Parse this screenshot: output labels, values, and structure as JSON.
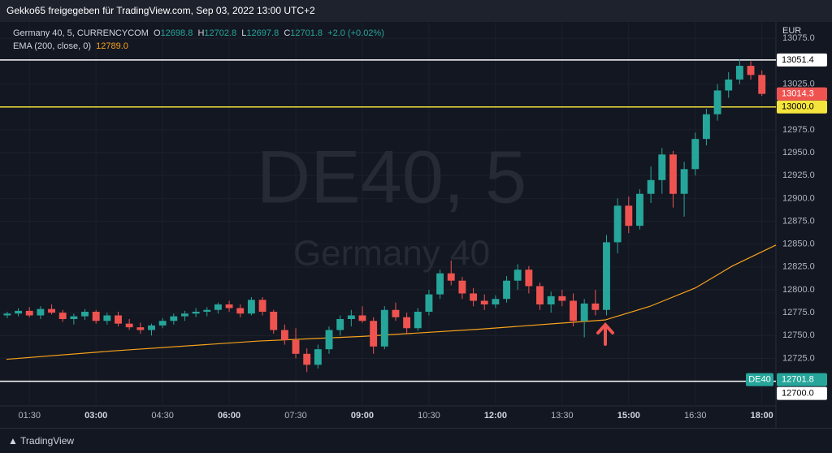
{
  "banner": "Gekko65 freigegeben für TradingView.com, Sep 03, 2022 13:00 UTC+2",
  "footer": "TradingView",
  "chart_data": {
    "type": "candlestick",
    "watermark": "DE40, 5",
    "watermark_sub": "Germany 40",
    "legend": {
      "symbol": "Germany 40, 5, CURRENCYCOM",
      "o_label": "O",
      "o": "12698.8",
      "h_label": "H",
      "h": "12702.8",
      "l_label": "L",
      "l": "12697.8",
      "c_label": "C",
      "c": "12701.8",
      "change": "+2.0 (+0.02%)",
      "ema_name": "EMA (200, close, 0)",
      "ema_value": "12789.0"
    },
    "currency": "EUR",
    "up_color": "#26a69a",
    "down_color": "#ef5350",
    "x": [
      60,
      75,
      90,
      105,
      120,
      135,
      150,
      165,
      180,
      195,
      210,
      225,
      240,
      255,
      270,
      285,
      300,
      315,
      330,
      345,
      360,
      375,
      390,
      405,
      420,
      435,
      450,
      465,
      480,
      495,
      510,
      525,
      540,
      555,
      570,
      585,
      600,
      615,
      630,
      645,
      660,
      675,
      690,
      705,
      720,
      735,
      750,
      765,
      780,
      795,
      810,
      825,
      840,
      855,
      870,
      885,
      900,
      915,
      930,
      945,
      960,
      975,
      990,
      1005,
      1020,
      1035,
      1050,
      1065,
      1080
    ],
    "open": [
      12772,
      12774,
      12777,
      12772,
      12779,
      12775,
      12768,
      12771,
      12776,
      12766,
      12772,
      12763,
      12759,
      12756,
      12761,
      12766,
      12771,
      12774,
      12776,
      12778,
      12784,
      12780,
      12774,
      12789,
      12776,
      12756,
      12745,
      12730,
      12718,
      12735,
      12756,
      12768,
      12772,
      12766,
      12738,
      12778,
      12770,
      12758,
      12776,
      12795,
      12818,
      12810,
      12796,
      12788,
      12784,
      12790,
      12810,
      12822,
      12804,
      12784,
      12793,
      12788,
      12766,
      12785,
      12778,
      12852,
      12892,
      12870,
      12905,
      12920,
      12948,
      12905,
      12932,
      12965,
      12992,
      13018,
      13030,
      13045,
      13035
    ],
    "high": [
      12776,
      12780,
      12781,
      12782,
      12784,
      12778,
      12774,
      12779,
      12778,
      12775,
      12776,
      12768,
      12764,
      12763,
      12769,
      12774,
      12777,
      12780,
      12781,
      12786,
      12788,
      12784,
      12792,
      12792,
      12778,
      12762,
      12758,
      12736,
      12740,
      12760,
      12772,
      12778,
      12782,
      12770,
      12782,
      12786,
      12775,
      12780,
      12800,
      12822,
      12832,
      12814,
      12802,
      12795,
      12794,
      12815,
      12828,
      12826,
      12808,
      12798,
      12800,
      12796,
      12790,
      12800,
      12860,
      12900,
      12902,
      12910,
      12935,
      12955,
      12952,
      12940,
      12972,
      12998,
      13025,
      13038,
      13052,
      13050,
      13040
    ],
    "low": [
      12769,
      12771,
      12770,
      12768,
      12773,
      12765,
      12762,
      12767,
      12763,
      12762,
      12760,
      12756,
      12752,
      12750,
      12758,
      12762,
      12766,
      12770,
      12771,
      12774,
      12776,
      12770,
      12772,
      12772,
      12752,
      12740,
      12725,
      12710,
      12714,
      12730,
      12750,
      12760,
      12764,
      12730,
      12735,
      12766,
      12752,
      12755,
      12772,
      12790,
      12805,
      12790,
      12782,
      12778,
      12780,
      12786,
      12800,
      12796,
      12778,
      12775,
      12782,
      12760,
      12748,
      12772,
      12772,
      12840,
      12862,
      12866,
      12895,
      12905,
      12890,
      12880,
      12925,
      12958,
      12985,
      13010,
      13025,
      13030,
      13012
    ],
    "close": [
      12774,
      12777,
      12772,
      12779,
      12775,
      12768,
      12771,
      12776,
      12766,
      12772,
      12763,
      12759,
      12756,
      12761,
      12766,
      12771,
      12774,
      12776,
      12778,
      12784,
      12780,
      12774,
      12789,
      12776,
      12756,
      12745,
      12730,
      12718,
      12735,
      12756,
      12768,
      12772,
      12766,
      12738,
      12778,
      12770,
      12758,
      12776,
      12795,
      12818,
      12810,
      12796,
      12788,
      12784,
      12790,
      12810,
      12822,
      12804,
      12784,
      12793,
      12788,
      12766,
      12785,
      12778,
      12852,
      12892,
      12870,
      12905,
      12920,
      12948,
      12905,
      12932,
      12965,
      12992,
      13018,
      13030,
      13045,
      13035,
      13014.3
    ],
    "ema": {
      "name": "EMA (200, close, 0)",
      "color": "#f7a21b",
      "x": [
        59,
        200,
        400,
        540,
        700,
        800,
        868,
        929,
        990,
        1040,
        1099
      ],
      "values": [
        12724,
        12733,
        12744,
        12749,
        12757,
        12763,
        12767,
        12782,
        12802,
        12826,
        12849
      ]
    },
    "hlines": [
      {
        "value": 13051.4,
        "label": "13051.4",
        "color": "#ffffff"
      },
      {
        "value": 13000,
        "label": "13000.0",
        "color": "#f5e43b"
      },
      {
        "value": 12700,
        "label": "12700.0",
        "color": "#ffffff"
      }
    ],
    "last_price": {
      "value": 13014.3,
      "label": "13014.3"
    },
    "symbol_price": {
      "tag": "DE40",
      "value": 12701.8,
      "label": "12701.8"
    },
    "xlim": [
      59,
      1099
    ],
    "ylim": [
      12673,
      13093
    ],
    "xticks": [
      {
        "value": 90,
        "label": "01:30"
      },
      {
        "value": 180,
        "label": "03:00"
      },
      {
        "value": 270,
        "label": "04:30"
      },
      {
        "value": 360,
        "label": "06:00"
      },
      {
        "value": 450,
        "label": "07:30"
      },
      {
        "value": 540,
        "label": "09:00"
      },
      {
        "value": 630,
        "label": "10:30"
      },
      {
        "value": 720,
        "label": "12:00"
      },
      {
        "value": 810,
        "label": "13:30"
      },
      {
        "value": 900,
        "label": "15:00"
      },
      {
        "value": 990,
        "label": "16:30"
      },
      {
        "value": 1080,
        "label": "18:00"
      }
    ],
    "yticks": [
      {
        "value": 12725,
        "label": "12725.0"
      },
      {
        "value": 12750,
        "label": "12750.0"
      },
      {
        "value": 12775,
        "label": "12775.0"
      },
      {
        "value": 12800,
        "label": "12800.0"
      },
      {
        "value": 12825,
        "label": "12825.0"
      },
      {
        "value": 12850,
        "label": "12850.0"
      },
      {
        "value": 12875,
        "label": "12875.0"
      },
      {
        "value": 12900,
        "label": "12900.0"
      },
      {
        "value": 12925,
        "label": "12925.0"
      },
      {
        "value": 12950,
        "label": "12950.0"
      },
      {
        "value": 12975,
        "label": "12975.0"
      },
      {
        "value": 13025,
        "label": "13025.0"
      },
      {
        "value": 13075,
        "label": "13075.0"
      }
    ],
    "grid": true
  }
}
